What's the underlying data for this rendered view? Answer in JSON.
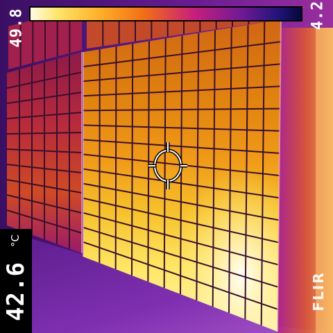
{
  "scale": {
    "max_value": "49.8",
    "min_value": "4.2",
    "palette": [
      "#fffbe6",
      "#ffe56a",
      "#ffb12a",
      "#f26e16",
      "#c8207a",
      "#6f1a95",
      "#1f1478",
      "#060639"
    ]
  },
  "spot_reading": {
    "value": "42.6",
    "unit": "°C"
  },
  "brand": {
    "logo_text": "FLIR",
    "logo_icon": "flir-logo-icon"
  },
  "crosshair": {
    "icon": "crosshair-icon"
  },
  "colors": {
    "hot": "#fff2b0",
    "warm": "#f29a1c",
    "cool_frame": "#b11f86",
    "background_cool": "#5b1c8a"
  }
}
